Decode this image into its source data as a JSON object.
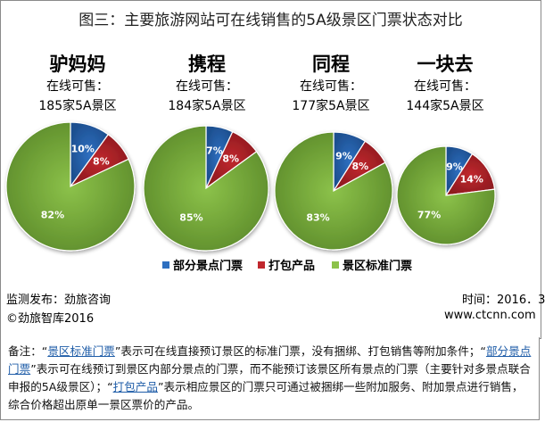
{
  "title": "图三：主要旅游网站可在线销售的5A级景区门票状态对比",
  "colors": {
    "partial": "#2e6fc0",
    "bundle": "#c0282e",
    "standard": "#8cc24a"
  },
  "chart_data": {
    "type": "pie",
    "title": "图三：主要旅游网站可在线销售的5A级景区门票状态对比",
    "legend": [
      "部分景点门票",
      "打包产品",
      "景区标准门票"
    ],
    "legend_position": "bottom",
    "pies": [
      {
        "name": "驴妈妈",
        "line1": "在线可售：",
        "line2": "185家5A景区",
        "slices": [
          {
            "label": "部分景点门票",
            "value": 10,
            "text": "10%"
          },
          {
            "label": "打包产品",
            "value": 8,
            "text": "8%"
          },
          {
            "label": "景区标准门票",
            "value": 82,
            "text": "82%"
          }
        ]
      },
      {
        "name": "携程",
        "line1": "在线可售：",
        "line2": "184家5A景区",
        "slices": [
          {
            "label": "部分景点门票",
            "value": 7,
            "text": "7%"
          },
          {
            "label": "打包产品",
            "value": 8,
            "text": "8%"
          },
          {
            "label": "景区标准门票",
            "value": 85,
            "text": "85%"
          }
        ]
      },
      {
        "name": "同程",
        "line1": "在线可售：",
        "line2": "177家5A景区",
        "slices": [
          {
            "label": "部分景点门票",
            "value": 9,
            "text": "9%"
          },
          {
            "label": "打包产品",
            "value": 8,
            "text": "8%"
          },
          {
            "label": "景区标准门票",
            "value": 83,
            "text": "83%"
          }
        ]
      },
      {
        "name": "一块去",
        "line1": "在线可售：",
        "line2": "144家5A景区",
        "slices": [
          {
            "label": "部分景点门票",
            "value": 9,
            "text": "9%"
          },
          {
            "label": "打包产品",
            "value": 14,
            "text": "14%"
          },
          {
            "label": "景区标准门票",
            "value": 77,
            "text": "77%"
          }
        ]
      }
    ]
  },
  "footer": {
    "source": "监测发布：劲旅咨询",
    "copyright": "©劲旅智库2016",
    "time": "时间：2016．3",
    "site": "www.ctcnn.com"
  },
  "note": {
    "p1": "备注：“",
    "k1": "景区标准门票",
    "p2": "”表示可在线直接预订景区的标准门票，没有捆绑、打包销售等附加条件；“",
    "k2": "部分景点门票",
    "p3": "”表示可在线预订到景区内部分景点的门票，而不能预订该景区所有景点的门票（主要针对多景点联合申报的5A级景区）；“",
    "k3": "打包产品",
    "p4": "”表示相应景区的门票只可通过被捆绑一些附加服务、附加景点进行销售，综合价格超出原单一景区票价的产品。"
  }
}
